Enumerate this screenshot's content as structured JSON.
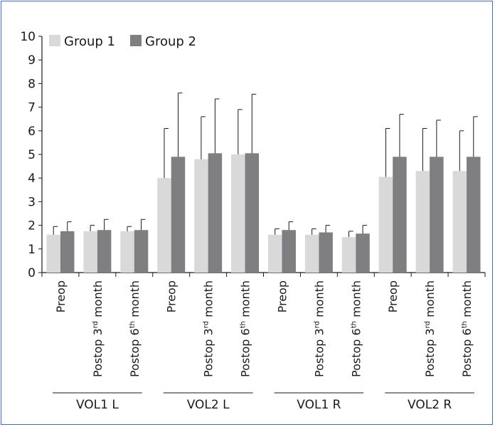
{
  "chart_data": {
    "type": "bar",
    "title": "",
    "xlabel": "",
    "ylabel": "",
    "ylim": [
      0,
      10
    ],
    "yticks": [
      "0",
      "1",
      "2",
      "3",
      "4",
      "5",
      "6",
      "7",
      "8",
      "9",
      "10"
    ],
    "legend_position": "top-left",
    "grid": false,
    "groups": [
      "VOL1 L",
      "VOL2 L",
      "VOL1 R",
      "VOL2 R"
    ],
    "timepoints": [
      {
        "base": "Preop",
        "sup": "",
        "rest": ""
      },
      {
        "base": "Postop 3",
        "sup": "rd",
        "rest": " month"
      },
      {
        "base": "Postop 6",
        "sup": "th",
        "rest": " month"
      }
    ],
    "series": [
      {
        "name": "Group 1",
        "color": "#d9d9d9",
        "values": [
          1.6,
          1.75,
          1.75,
          4.0,
          4.8,
          5.0,
          1.6,
          1.6,
          1.5,
          4.05,
          4.3,
          4.3
        ],
        "errors": [
          0.35,
          0.25,
          0.2,
          2.1,
          1.8,
          1.9,
          0.25,
          0.25,
          0.25,
          2.05,
          1.8,
          1.7
        ]
      },
      {
        "name": "Group 2",
        "color": "#7f7f82",
        "values": [
          1.75,
          1.8,
          1.8,
          4.9,
          5.05,
          5.05,
          1.8,
          1.7,
          1.65,
          4.9,
          4.9,
          4.9
        ],
        "errors": [
          0.4,
          0.45,
          0.45,
          2.7,
          2.3,
          2.5,
          0.35,
          0.3,
          0.35,
          1.8,
          1.55,
          1.7
        ]
      }
    ]
  }
}
